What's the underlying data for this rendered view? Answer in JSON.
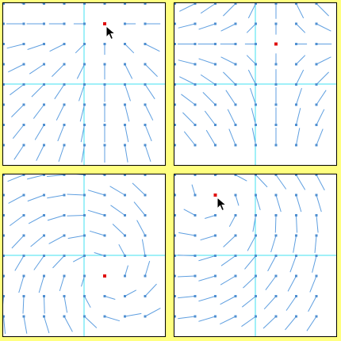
{
  "colors": {
    "frame_background": "#ffff80",
    "panel_background": "#ffffff",
    "panel_border": "#000000",
    "axis_line": "#40e0f0",
    "vector_line": "#5f9fe0",
    "grid_point": "#4f8fd0",
    "critical_point": "#e01010"
  },
  "panels": [
    {
      "field": "node",
      "singular_point": {
        "col": 5,
        "row": 1
      },
      "has_cursor": true
    },
    {
      "field": "saddle",
      "singular_point": {
        "col": 5,
        "row": 2
      },
      "has_cursor": false
    },
    {
      "field": "focus-ccw",
      "singular_point": {
        "col": 5,
        "row": 5
      },
      "has_cursor": false
    },
    {
      "field": "focus-cw",
      "singular_point": {
        "col": 2,
        "row": 1
      },
      "has_cursor": true
    }
  ],
  "icons": {
    "pointer": "mouse-pointer-icon"
  }
}
